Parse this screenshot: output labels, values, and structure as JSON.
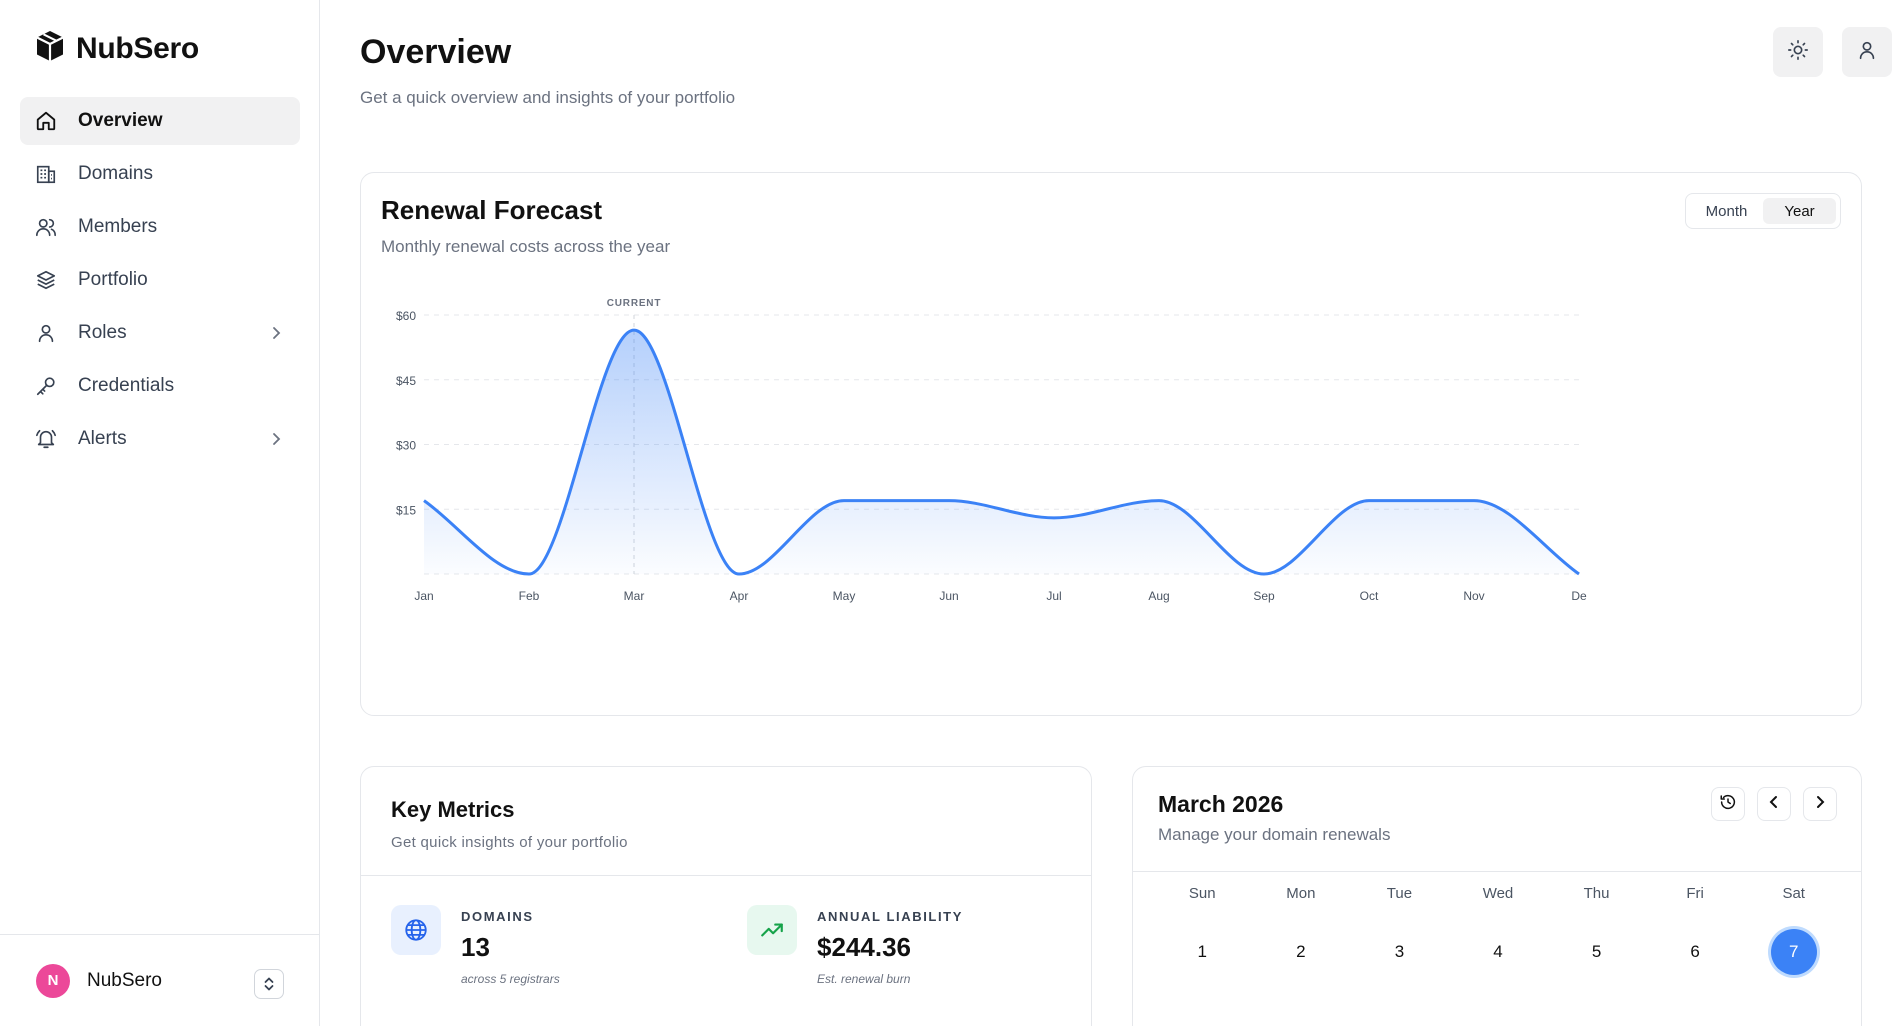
{
  "brand": {
    "name": "NubSero"
  },
  "sidebar": {
    "items": [
      {
        "label": "Overview",
        "icon": "home-icon",
        "active": true
      },
      {
        "label": "Domains",
        "icon": "building-icon"
      },
      {
        "label": "Members",
        "icon": "users-icon"
      },
      {
        "label": "Portfolio",
        "icon": "layers-icon"
      },
      {
        "label": "Roles",
        "icon": "user-icon",
        "chevron": true
      },
      {
        "label": "Credentials",
        "icon": "key-icon"
      },
      {
        "label": "Alerts",
        "icon": "bell-icon",
        "chevron": true
      }
    ],
    "footer": {
      "initial": "N",
      "name": "NubSero"
    }
  },
  "header": {
    "title": "Overview",
    "subtitle": "Get a quick overview and insights of your portfolio"
  },
  "forecast": {
    "title": "Renewal Forecast",
    "subtitle": "Monthly renewal costs across the year",
    "toggle": {
      "month": "Month",
      "year": "Year",
      "selected": "Year"
    },
    "current_label": "CURRENT"
  },
  "chart_data": {
    "type": "area",
    "categories": [
      "Jan",
      "Feb",
      "Mar",
      "Apr",
      "May",
      "Jun",
      "Jul",
      "Aug",
      "Sep",
      "Oct",
      "Nov",
      "Dec"
    ],
    "tick_labels": [
      "Jan",
      "Feb",
      "Mar",
      "Apr",
      "May",
      "Jun",
      "Jul",
      "Aug",
      "Sep",
      "Oct",
      "Nov",
      "De"
    ],
    "values": [
      17,
      0,
      56.5,
      0,
      17,
      17,
      13,
      17,
      0,
      17,
      17,
      0
    ],
    "yticks": [
      "$15",
      "$30",
      "$45",
      "$60"
    ],
    "ylim": [
      0,
      60
    ],
    "grid": true,
    "highlight_category": "Mar",
    "color": "#3b82f6"
  },
  "metrics": {
    "title": "Key Metrics",
    "subtitle": "Get quick insights of your portfolio",
    "items": [
      {
        "label": "DOMAINS",
        "value": "13",
        "note": "across 5 registrars",
        "icon": "globe-icon"
      },
      {
        "label": "ANNUAL LIABILITY",
        "value": "$244.36",
        "note": "Est. renewal burn",
        "icon": "trend-up-icon"
      }
    ]
  },
  "calendar": {
    "title": "March 2026",
    "subtitle": "Manage your domain renewals",
    "weekdays": [
      "Sun",
      "Mon",
      "Tue",
      "Wed",
      "Thu",
      "Fri",
      "Sat"
    ],
    "days": [
      "1",
      "2",
      "3",
      "4",
      "5",
      "6",
      "7"
    ],
    "today": "7"
  }
}
